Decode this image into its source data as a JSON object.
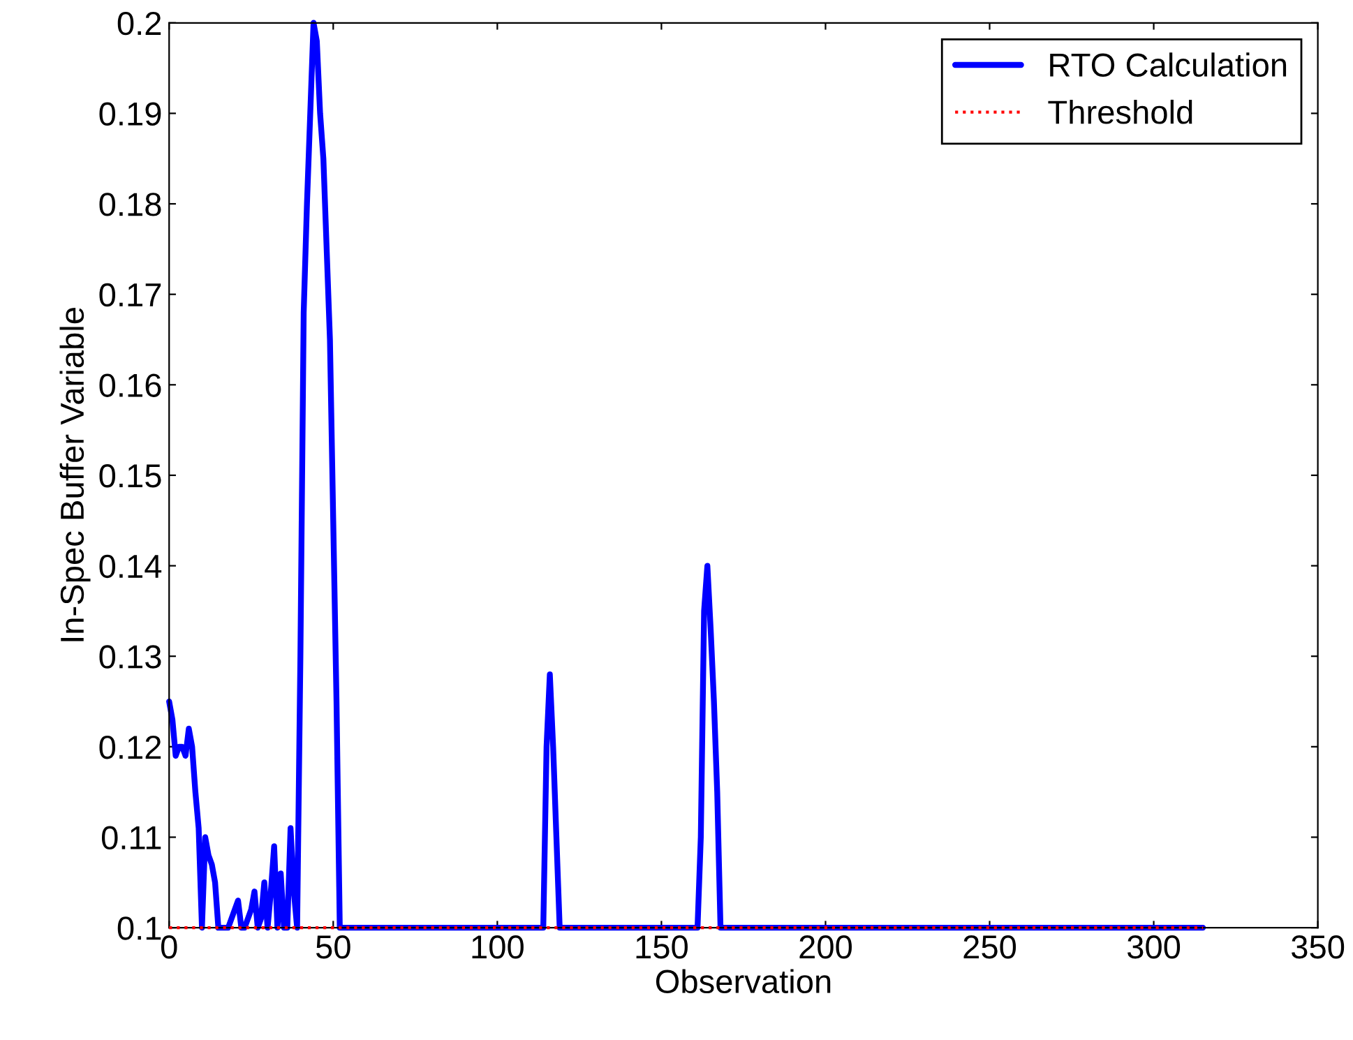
{
  "chart_data": {
    "type": "line",
    "xlabel": "Observation",
    "ylabel": "In-Spec Buffer Variable",
    "xlim": [
      0,
      350
    ],
    "ylim": [
      0.1,
      0.2
    ],
    "xticks": [
      0,
      50,
      100,
      150,
      200,
      250,
      300,
      350
    ],
    "yticks": [
      0.1,
      0.11,
      0.12,
      0.13,
      0.14,
      0.15,
      0.16,
      0.17,
      0.18,
      0.19,
      0.2
    ],
    "grid": false,
    "legend": "top right",
    "line_style": "solid",
    "marker": "none",
    "series": [
      {
        "name": "RTO Calculation",
        "color": "#0000ff",
        "x": [
          0,
          1,
          2,
          3,
          4,
          5,
          6,
          7,
          8,
          9,
          10,
          11,
          12,
          13,
          14,
          15,
          16,
          17,
          18,
          19,
          20,
          21,
          22,
          23,
          24,
          25,
          26,
          27,
          28,
          29,
          30,
          31,
          32,
          33,
          34,
          35,
          36,
          37,
          38,
          39,
          40,
          41,
          42,
          43,
          44,
          45,
          46,
          47,
          48,
          49,
          50,
          51,
          52,
          53,
          114,
          115,
          116,
          117,
          118,
          119,
          161,
          162,
          163,
          164,
          165,
          166,
          167,
          168,
          315
        ],
        "values": [
          0.125,
          0.123,
          0.119,
          0.12,
          0.12,
          0.119,
          0.122,
          0.12,
          0.115,
          0.111,
          0.1,
          0.11,
          0.108,
          0.107,
          0.105,
          0.1,
          0.1,
          0.1,
          0.1,
          0.101,
          0.102,
          0.103,
          0.1,
          0.1,
          0.101,
          0.102,
          0.104,
          0.1,
          0.101,
          0.105,
          0.1,
          0.104,
          0.109,
          0.1,
          0.106,
          0.1,
          0.1,
          0.111,
          0.104,
          0.1,
          0.13,
          0.168,
          0.18,
          0.19,
          0.2,
          0.198,
          0.19,
          0.185,
          0.175,
          0.165,
          0.145,
          0.125,
          0.1,
          0.1,
          0.1,
          0.12,
          0.128,
          0.12,
          0.11,
          0.1,
          0.1,
          0.11,
          0.135,
          0.14,
          0.133,
          0.125,
          0.115,
          0.1,
          0.1
        ]
      },
      {
        "name": "Threshold",
        "color": "#ff0000",
        "line_style": "dotted",
        "x": [
          0,
          315
        ],
        "values": [
          0.1,
          0.1
        ]
      }
    ]
  }
}
